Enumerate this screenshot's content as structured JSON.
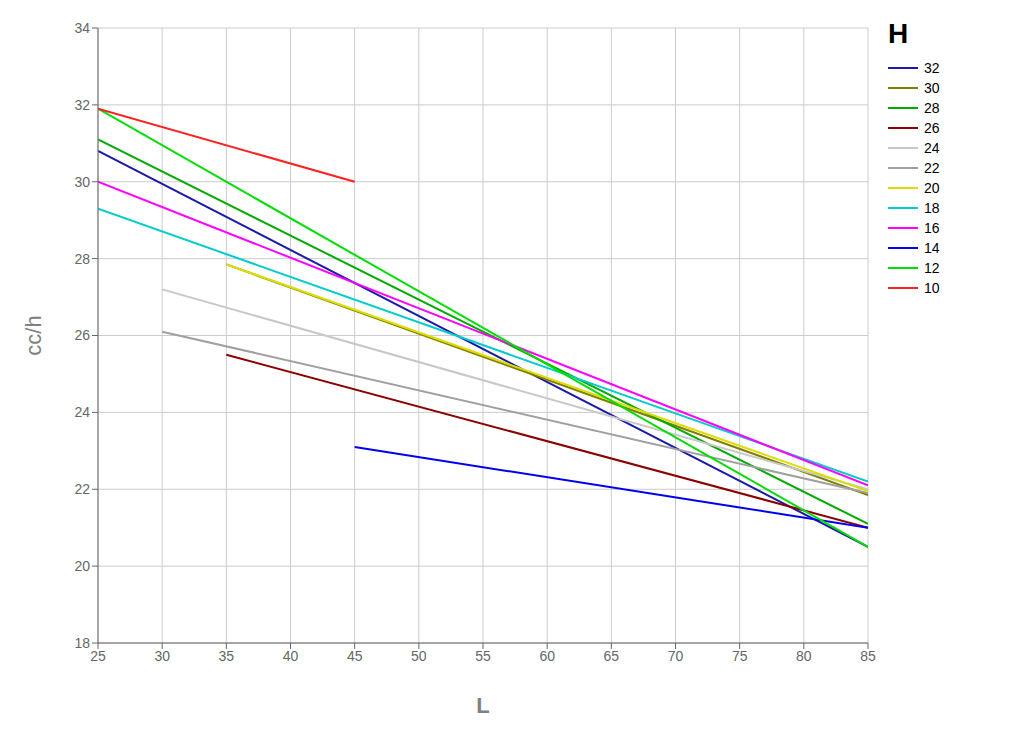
{
  "chart_data": {
    "type": "line",
    "xlabel": "L",
    "ylabel": "cc/h",
    "xlim": [
      25,
      85
    ],
    "ylim": [
      18,
      34
    ],
    "xticks": [
      25,
      30,
      35,
      40,
      45,
      50,
      55,
      60,
      65,
      70,
      75,
      80,
      85
    ],
    "yticks": [
      18,
      20,
      22,
      24,
      26,
      28,
      30,
      32,
      34
    ],
    "grid": true,
    "legend": "right",
    "legend_title": "H",
    "series": [
      {
        "name": "32",
        "color": "#1a1aaa",
        "x": [
          25,
          85
        ],
        "values": [
          30.8,
          20.5
        ]
      },
      {
        "name": "30",
        "color": "#808000",
        "x": [
          35,
          85
        ],
        "values": [
          27.85,
          21.85
        ]
      },
      {
        "name": "28",
        "color": "#00aa00",
        "x": [
          25,
          85
        ],
        "values": [
          31.1,
          21.1
        ]
      },
      {
        "name": "26",
        "color": "#8b0000",
        "x": [
          35,
          85
        ],
        "values": [
          25.5,
          21.0
        ]
      },
      {
        "name": "24",
        "color": "#c8c8c8",
        "x": [
          30,
          85
        ],
        "values": [
          27.2,
          22.0
        ]
      },
      {
        "name": "22",
        "color": "#a0a0a0",
        "x": [
          30,
          85
        ],
        "values": [
          26.1,
          21.9
        ]
      },
      {
        "name": "20",
        "color": "#dddd00",
        "x": [
          35,
          85
        ],
        "values": [
          27.85,
          21.95
        ]
      },
      {
        "name": "18",
        "color": "#00cccc",
        "x": [
          25,
          85
        ],
        "values": [
          29.3,
          22.2
        ]
      },
      {
        "name": "16",
        "color": "#ff00ff",
        "x": [
          25,
          85
        ],
        "values": [
          30.0,
          22.1
        ]
      },
      {
        "name": "14",
        "color": "#0000ee",
        "x": [
          45,
          85
        ],
        "values": [
          23.1,
          21.0
        ]
      },
      {
        "name": "12",
        "color": "#00dd00",
        "x": [
          25,
          85
        ],
        "values": [
          31.9,
          20.5
        ]
      },
      {
        "name": "10",
        "color": "#ff2020",
        "x": [
          25,
          45
        ],
        "values": [
          31.9,
          30.0
        ]
      }
    ]
  }
}
